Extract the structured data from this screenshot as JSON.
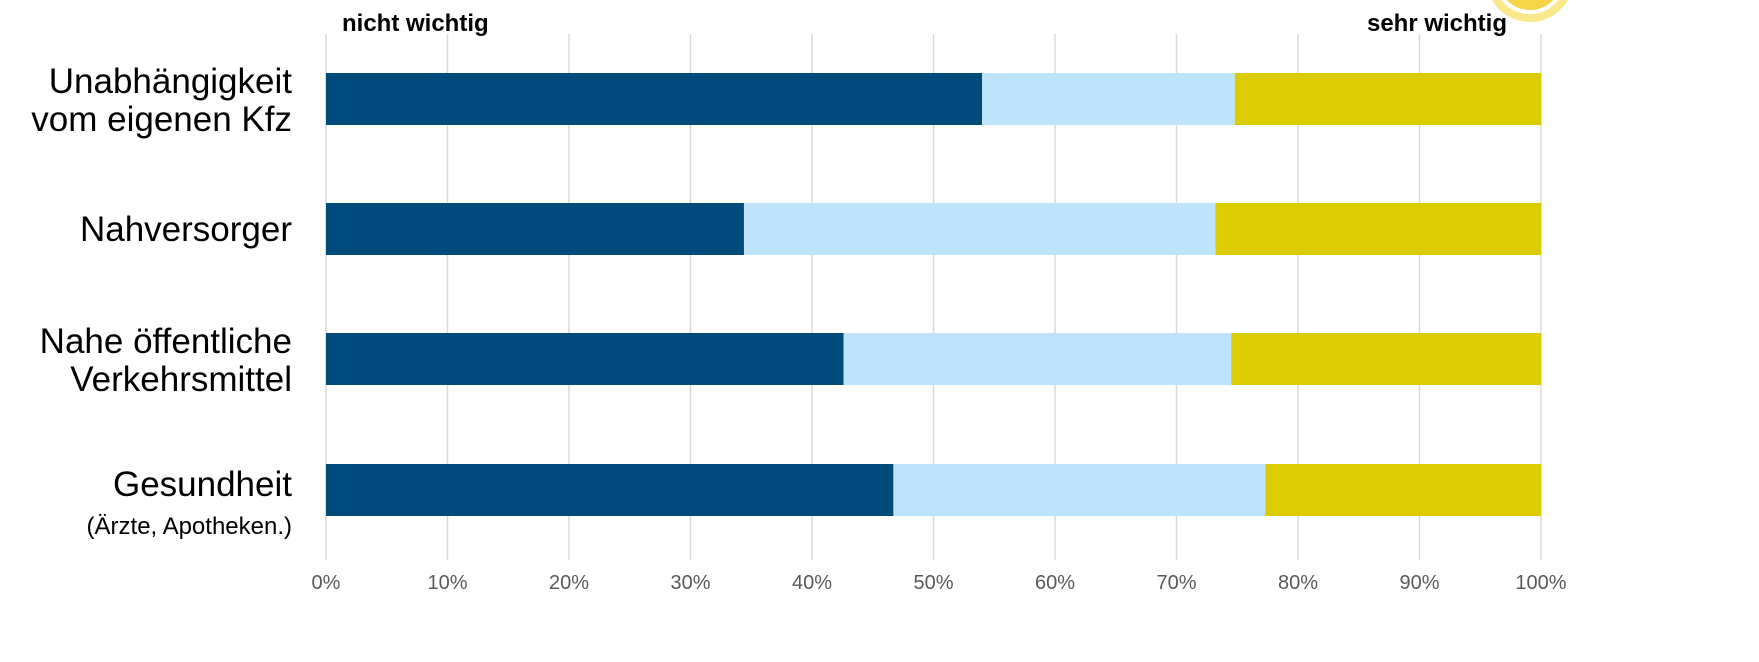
{
  "chart_data": {
    "type": "bar",
    "orientation": "horizontal",
    "stacked": true,
    "percent_stacked": true,
    "scale_labels": {
      "low": "nicht wichtig",
      "high": "sehr wichtig"
    },
    "categories": [
      {
        "lines": [
          "Unabhängigkeit",
          "vom eigenen Kfz"
        ],
        "sub": ""
      },
      {
        "lines": [
          "Nahversorger"
        ],
        "sub": ""
      },
      {
        "lines": [
          "Nahe öffentliche",
          "Verkehrsmittel"
        ],
        "sub": ""
      },
      {
        "lines": [
          "Gesundheit"
        ],
        "sub": "(Ärzte, Apotheken.)"
      }
    ],
    "series": [
      {
        "values": [
          54,
          34.4,
          42.6,
          46.7
        ],
        "color": "#004a7c"
      },
      {
        "values": [
          20.8,
          38.8,
          31.9,
          30.6
        ],
        "color": "#bde4fa"
      },
      {
        "values": [
          25.2,
          26.8,
          25.5,
          22.7
        ],
        "color": "#dccb00"
      }
    ],
    "xlim": [
      0,
      100
    ],
    "xticks": [
      "0%",
      "10%",
      "20%",
      "30%",
      "40%",
      "50%",
      "60%",
      "70%",
      "80%",
      "90%",
      "100%"
    ],
    "grid": true
  },
  "decor_colors": {
    "corner_accent": "#f5d547",
    "corner_accent_light": "#fbe88a"
  }
}
